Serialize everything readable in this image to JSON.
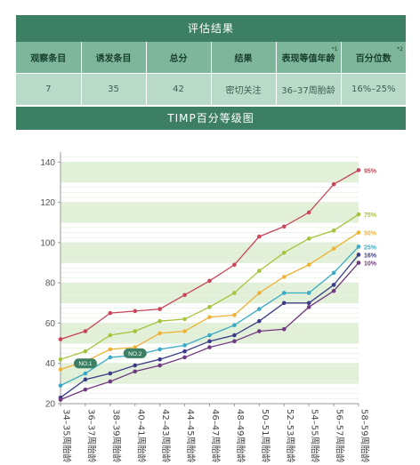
{
  "result": {
    "title": "评估结果",
    "headers": [
      {
        "label": "观察条目",
        "note": ""
      },
      {
        "label": "诱发条目",
        "note": ""
      },
      {
        "label": "总分",
        "note": ""
      },
      {
        "label": "结果",
        "note": ""
      },
      {
        "label": "表现等值年龄",
        "note": "*1"
      },
      {
        "label": "百分位数",
        "note": "*2"
      }
    ],
    "values": [
      "7",
      "35",
      "42",
      "密切关注",
      "36–37周胎龄",
      "16%–25%"
    ]
  },
  "chart_banner": "TIMP百分等级图",
  "colors": {
    "banner": "#3d7f65",
    "header_bg": "#7eb69b",
    "cell_bg": "#b9d9c9",
    "band": "#e3f1da"
  },
  "chart_data": {
    "type": "line",
    "categories": [
      "34–35周胎龄",
      "36–37周胎龄",
      "38–39周胎龄",
      "40–41周胎龄",
      "42–43周胎龄",
      "44–45周胎龄",
      "46–47周胎龄",
      "48–49周胎龄",
      "50–51周胎龄",
      "52–53周胎龄",
      "54–55周胎龄",
      "56–57周胎龄",
      "58–59周胎龄"
    ],
    "ylim": [
      20,
      145
    ],
    "yticks": [
      20,
      40,
      60,
      80,
      100,
      120,
      140
    ],
    "series": [
      {
        "name": "95%",
        "color": "#c8455a",
        "values": [
          52,
          56,
          65,
          66,
          67,
          74,
          81,
          89,
          103,
          108,
          115,
          129,
          136
        ]
      },
      {
        "name": "75%",
        "color": "#a6c33c",
        "values": [
          42,
          46,
          54,
          56,
          61,
          62,
          68,
          75,
          86,
          95,
          102,
          106,
          114
        ]
      },
      {
        "name": "50%",
        "color": "#efb236",
        "values": [
          37,
          41,
          47,
          48,
          55,
          56,
          63,
          64,
          75,
          83,
          89,
          97,
          105
        ]
      },
      {
        "name": "25%",
        "color": "#3aaac6",
        "values": [
          29,
          35,
          43,
          44,
          47,
          49,
          54,
          59,
          67,
          75,
          75,
          85,
          98
        ]
      },
      {
        "name": "16%",
        "color": "#3b3c87",
        "values": [
          23,
          32,
          35,
          39,
          42,
          46,
          51,
          54,
          61,
          70,
          70,
          79,
          94
        ]
      },
      {
        "name": "10%",
        "color": "#6f3a80",
        "values": [
          22,
          27,
          31,
          36,
          39,
          43,
          48,
          51,
          56,
          57,
          68,
          76,
          90
        ]
      }
    ],
    "annotations": [
      {
        "text": "NO.1",
        "category_index": 1,
        "y": 40
      },
      {
        "text": "NO.2",
        "category_index": 3,
        "y": 45
      }
    ]
  }
}
